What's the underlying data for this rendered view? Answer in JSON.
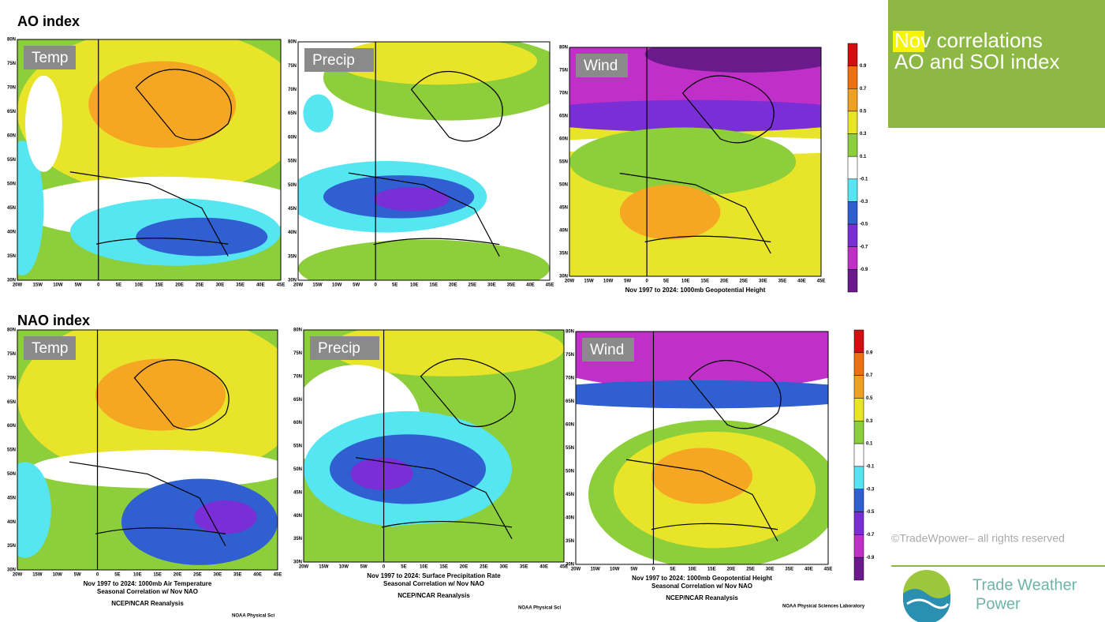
{
  "heading": {
    "highlight": "Nov",
    "rest": "correlations",
    "line2": "AO and SOI index"
  },
  "lat_ticks": [
    "80N",
    "75N",
    "70N",
    "65N",
    "60N",
    "55N",
    "50N",
    "45N",
    "40N",
    "35N",
    "30N"
  ],
  "lon_ticks": [
    "20W",
    "15W",
    "10W",
    "5W",
    "0",
    "5E",
    "10E",
    "15E",
    "20E",
    "25E",
    "30E",
    "35E",
    "40E",
    "45E"
  ],
  "colorbar": [
    "0.9",
    "0.7",
    "0.5",
    "0.3",
    "0.1",
    "-0.1",
    "-0.3",
    "-0.5",
    "-0.7",
    "-0.9"
  ],
  "rows": [
    {
      "title": "AO index",
      "panels": [
        {
          "label": "Temp",
          "captions": []
        },
        {
          "label": "Precip",
          "captions": []
        },
        {
          "label": "Wind",
          "captions": [
            "Nov 1997 to 2024: 1000mb Geopotential Height"
          ]
        }
      ]
    },
    {
      "title": "NAO index",
      "panels": [
        {
          "label": "Temp",
          "captions": [
            "Nov 1997 to 2024: 1000mb Air Temperature",
            "Seasonal Correlation w/ Nov NAO",
            "NCEP/NCAR Reanalysis"
          ],
          "footer": "NOAA Physical Sci"
        },
        {
          "label": "Precip",
          "captions": [
            "Nov 1997 to 2024: Surface Precipitation Rate",
            "Seasonal Correlation w/ Nov NAO",
            "NCEP/NCAR Reanalysis"
          ],
          "footer": "NOAA Physical Sci"
        },
        {
          "label": "Wind",
          "captions": [
            "Nov 1997 to 2024: 1000mb Geopotential Height",
            "Seasonal Correlation w/ Nov NAO",
            "NCEP/NCAR Reanalysis"
          ],
          "footer": "NOAA Physical Sciences Laboratory"
        }
      ]
    }
  ],
  "copyright": "©TradeWpower– all rights reserved",
  "logo": [
    "Trade Weather",
    "Power"
  ]
}
